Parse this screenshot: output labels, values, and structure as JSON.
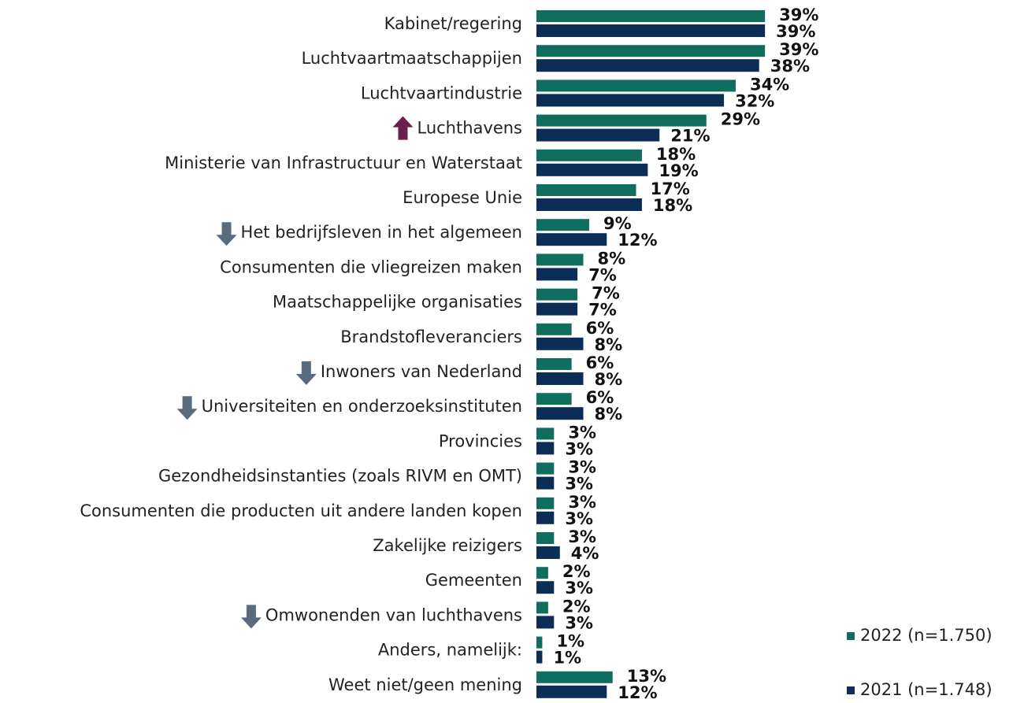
{
  "chart_data": {
    "type": "bar",
    "orientation": "horizontal",
    "categories": [
      "Kabinet/regering",
      "Luchtvaartmaatschappijen",
      "Luchtvaartindustrie",
      "Luchthavens",
      "Ministerie van Infrastructuur en Waterstaat",
      "Europese Unie",
      "Het bedrijfsleven in het algemeen",
      "Consumenten die vliegreizen maken",
      "Maatschappelijke organisaties",
      "Brandstofleveranciers",
      "Inwoners van Nederland",
      "Universiteiten en onderzoeksinstituten",
      "Provincies",
      "Gezondheidsinstanties (zoals RIVM en OMT)",
      "Consumenten die producten uit andere landen kopen",
      "Zakelijke reizigers",
      "Gemeenten",
      "Omwonenden van luchthavens",
      "Anders, namelijk:",
      "Weet niet/geen mening"
    ],
    "series": [
      {
        "name": "2022 (n=1.750)",
        "color": "#0f6e5e",
        "values": [
          39,
          39,
          34,
          29,
          18,
          17,
          9,
          8,
          7,
          6,
          6,
          6,
          3,
          3,
          3,
          3,
          2,
          2,
          1,
          13
        ],
        "value_labels": [
          "39%",
          "39%",
          "34%",
          "29%",
          "18%",
          "17%",
          "9%",
          "8%",
          "7%",
          "6%",
          "6%",
          "6%",
          "3%",
          "3%",
          "3%",
          "3%",
          "2%",
          "2%",
          "1%",
          "13%"
        ]
      },
      {
        "name": "2021 (n=1.748)",
        "color": "#0c2d55",
        "values": [
          39,
          38,
          32,
          21,
          19,
          18,
          12,
          7,
          7,
          8,
          8,
          8,
          3,
          3,
          3,
          4,
          3,
          3,
          1,
          12
        ],
        "value_labels": [
          "39%",
          "38%",
          "32%",
          "21%",
          "19%",
          "18%",
          "12%",
          "7%",
          "7%",
          "8%",
          "8%",
          "8%",
          "3%",
          "3%",
          "3%",
          "4%",
          "3%",
          "3%",
          "1%",
          "12%"
        ]
      }
    ],
    "legend": "bottom-right"
  }
}
